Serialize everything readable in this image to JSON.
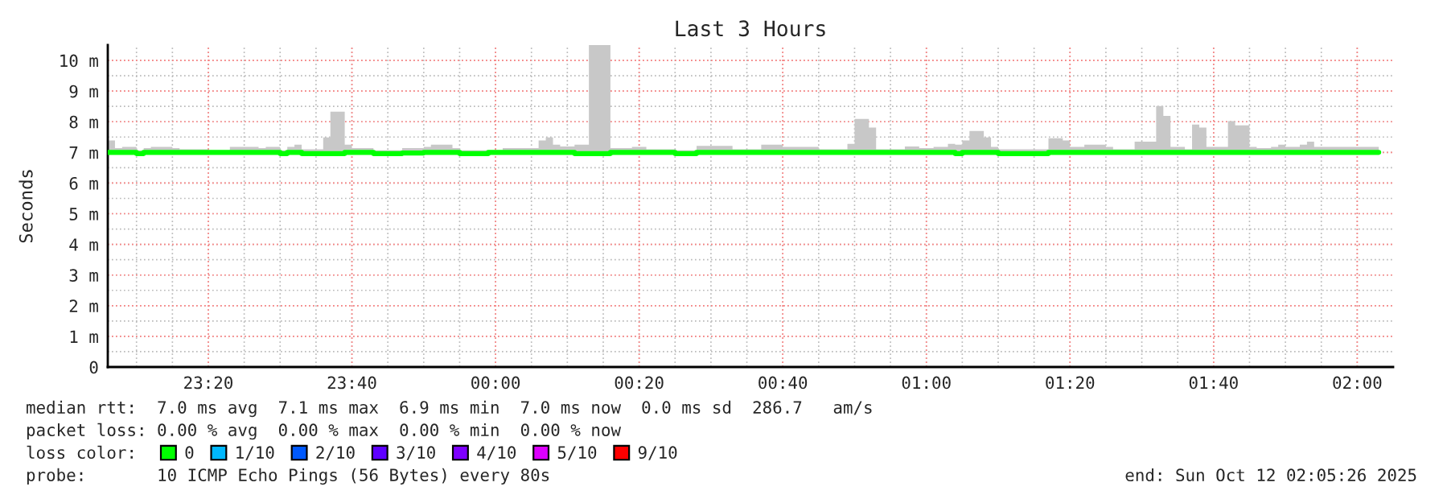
{
  "chart_data": {
    "type": "step",
    "title": "Last 3 Hours",
    "ylabel": "Seconds",
    "x": [
      "2025-10-11T23:06",
      "2025-10-11T23:07",
      "2025-10-11T23:08",
      "2025-10-11T23:10",
      "2025-10-11T23:11",
      "2025-10-11T23:12",
      "2025-10-11T23:15",
      "2025-10-11T23:16",
      "2025-10-11T23:20",
      "2025-10-11T23:23",
      "2025-10-11T23:27",
      "2025-10-11T23:28",
      "2025-10-11T23:30",
      "2025-10-11T23:31",
      "2025-10-11T23:32",
      "2025-10-11T23:33",
      "2025-10-11T23:36",
      "2025-10-11T23:37",
      "2025-10-11T23:39",
      "2025-10-11T23:40",
      "2025-10-11T23:43",
      "2025-10-11T23:47",
      "2025-10-11T23:50",
      "2025-10-11T23:51",
      "2025-10-11T23:54",
      "2025-10-11T23:55",
      "2025-10-11T23:59",
      "2025-10-12T00:01",
      "2025-10-12T00:06",
      "2025-10-12T00:07",
      "2025-10-12T00:08",
      "2025-10-12T00:09",
      "2025-10-12T00:11",
      "2025-10-12T00:13",
      "2025-10-12T00:16",
      "2025-10-12T00:19",
      "2025-10-12T00:21",
      "2025-10-12T00:25",
      "2025-10-12T00:28",
      "2025-10-12T00:33",
      "2025-10-12T00:37",
      "2025-10-12T00:40",
      "2025-10-12T00:45",
      "2025-10-12T00:49",
      "2025-10-12T00:50",
      "2025-10-12T00:52",
      "2025-10-12T00:53",
      "2025-10-12T00:56",
      "2025-10-12T00:57",
      "2025-10-12T00:59",
      "2025-10-12T01:01",
      "2025-10-12T01:03",
      "2025-10-12T01:04",
      "2025-10-12T01:05",
      "2025-10-12T01:06",
      "2025-10-12T01:08",
      "2025-10-12T01:09",
      "2025-10-12T01:10",
      "2025-10-12T01:17",
      "2025-10-12T01:19",
      "2025-10-12T01:20",
      "2025-10-12T01:22",
      "2025-10-12T01:25",
      "2025-10-12T01:26",
      "2025-10-12T01:29",
      "2025-10-12T01:32",
      "2025-10-12T01:33",
      "2025-10-12T01:34",
      "2025-10-12T01:36",
      "2025-10-12T01:37",
      "2025-10-12T01:38",
      "2025-10-12T01:39",
      "2025-10-12T01:42",
      "2025-10-12T01:43",
      "2025-10-12T01:45",
      "2025-10-12T01:46",
      "2025-10-12T01:48",
      "2025-10-12T01:49",
      "2025-10-12T01:50",
      "2025-10-12T01:52",
      "2025-10-12T01:53",
      "2025-10-12T01:54",
      "2025-10-12T02:03"
    ],
    "series": [
      {
        "name": "0",
        "color": "#00ff00",
        "values": [
          7.0,
          7.0,
          7.0,
          6.96,
          7.0,
          7.0,
          7.0,
          7.0,
          7.0,
          7.0,
          7.0,
          7.0,
          6.96,
          7.0,
          7.0,
          6.96,
          6.96,
          6.96,
          7.0,
          7.0,
          6.96,
          6.98,
          7.0,
          7.0,
          7.0,
          6.96,
          7.0,
          7.0,
          7.0,
          7.0,
          7.0,
          7.0,
          6.96,
          6.96,
          7.0,
          7.0,
          7.0,
          6.96,
          7.0,
          7.0,
          7.0,
          7.0,
          7.0,
          7.0,
          7.0,
          7.0,
          7.0,
          7.0,
          7.0,
          7.0,
          7.0,
          7.0,
          6.96,
          7.0,
          7.0,
          7.0,
          7.0,
          6.96,
          7.0,
          7.0,
          7.0,
          7.0,
          7.0,
          7.0,
          7.0,
          7.0,
          7.0,
          7.0,
          7.0,
          7.0,
          7.0,
          7.0,
          7.0,
          7.0,
          7.0,
          7.0,
          7.0,
          7.0,
          7.0,
          7.0,
          7.0,
          7.0,
          7.0
        ],
        "lower": [
          6.95,
          6.95,
          6.95,
          6.95,
          6.95,
          6.95,
          6.95,
          6.95,
          6.95,
          6.95,
          6.95,
          6.95,
          6.95,
          6.95,
          6.95,
          6.95,
          6.95,
          6.95,
          6.95,
          6.95,
          6.95,
          6.95,
          6.95,
          6.95,
          6.95,
          6.95,
          6.95,
          6.95,
          6.95,
          6.95,
          6.95,
          6.95,
          6.95,
          6.95,
          6.95,
          6.95,
          6.95,
          6.95,
          6.95,
          6.95,
          6.95,
          6.95,
          6.95,
          6.95,
          6.95,
          6.95,
          6.95,
          6.95,
          6.95,
          6.95,
          6.95,
          6.95,
          6.95,
          6.95,
          6.95,
          6.95,
          6.95,
          6.95,
          6.95,
          6.95,
          6.95,
          6.95,
          6.95,
          6.95,
          6.95,
          6.95,
          6.95,
          6.95,
          6.95,
          6.95,
          6.95,
          6.95,
          6.95,
          6.95,
          6.95,
          6.95,
          6.95,
          6.95,
          6.95,
          6.95,
          6.95,
          6.95,
          6.95
        ],
        "upper": [
          7.39,
          7.14,
          7.18,
          7.07,
          7.14,
          7.18,
          7.14,
          7.1,
          7.07,
          7.18,
          7.14,
          7.18,
          7.07,
          7.18,
          7.25,
          7.1,
          7.49,
          8.33,
          7.25,
          7.14,
          7.07,
          7.14,
          7.18,
          7.25,
          7.14,
          7.07,
          7.07,
          7.14,
          7.39,
          7.49,
          7.25,
          7.19,
          7.25,
          10.5,
          7.14,
          7.18,
          7.1,
          7.07,
          7.21,
          7.1,
          7.25,
          7.18,
          7.1,
          7.28,
          8.09,
          7.81,
          7.1,
          7.1,
          7.19,
          7.14,
          7.18,
          7.28,
          7.25,
          7.39,
          7.7,
          7.49,
          7.18,
          7.1,
          7.46,
          7.39,
          7.18,
          7.25,
          7.18,
          7.1,
          7.35,
          8.51,
          8.19,
          7.18,
          7.1,
          7.91,
          7.81,
          7.18,
          8.02,
          7.88,
          7.18,
          7.14,
          7.18,
          7.25,
          7.18,
          7.25,
          7.35,
          7.18,
          7.18
        ]
      },
      {
        "name": "1/10",
        "color": "#00b8ff",
        "values": [
          null,
          null,
          null,
          null,
          null,
          null,
          null,
          null,
          null,
          null,
          null,
          null,
          null,
          null,
          null,
          null,
          null,
          null,
          null,
          null,
          null,
          null,
          null,
          null,
          null,
          null,
          null,
          null,
          null,
          null,
          null,
          null,
          null,
          null,
          null,
          null,
          null,
          null,
          null,
          null,
          null,
          null,
          null,
          null,
          null,
          null,
          null,
          null,
          null,
          null,
          null,
          null,
          null,
          null,
          null,
          null,
          null,
          null,
          null,
          null,
          null,
          null,
          null,
          null,
          null,
          null,
          null,
          null,
          null,
          null,
          null,
          null,
          null,
          null,
          null,
          null,
          null,
          null,
          null,
          null,
          null,
          null,
          null
        ]
      },
      {
        "name": "2/10",
        "color": "#0059ff",
        "values": [
          null,
          null,
          null,
          null,
          null,
          null,
          null,
          null,
          null,
          null,
          null,
          null,
          null,
          null,
          null,
          null,
          null,
          null,
          null,
          null,
          null,
          null,
          null,
          null,
          null,
          null,
          null,
          null,
          null,
          null,
          null,
          null,
          null,
          null,
          null,
          null,
          null,
          null,
          null,
          null,
          null,
          null,
          null,
          null,
          null,
          null,
          null,
          null,
          null,
          null,
          null,
          null,
          null,
          null,
          null,
          null,
          null,
          null,
          null,
          null,
          null,
          null,
          null,
          null,
          null,
          null,
          null,
          null,
          null,
          null,
          null,
          null,
          null,
          null,
          null,
          null,
          null,
          null,
          null,
          null,
          null,
          null,
          null
        ]
      },
      {
        "name": "3/10",
        "color": "#5e00ff",
        "values": [
          null,
          null,
          null,
          null,
          null,
          null,
          null,
          null,
          null,
          null,
          null,
          null,
          null,
          null,
          null,
          null,
          null,
          null,
          null,
          null,
          null,
          null,
          null,
          null,
          null,
          null,
          null,
          null,
          null,
          null,
          null,
          null,
          null,
          null,
          null,
          null,
          null,
          null,
          null,
          null,
          null,
          null,
          null,
          null,
          null,
          null,
          null,
          null,
          null,
          null,
          null,
          null,
          null,
          null,
          null,
          null,
          null,
          null,
          null,
          null,
          null,
          null,
          null,
          null,
          null,
          null,
          null,
          null,
          null,
          null,
          null,
          null,
          null,
          null,
          null,
          null,
          null,
          null,
          null,
          null,
          null,
          null,
          null
        ]
      },
      {
        "name": "4/10",
        "color": "#7e00ff",
        "values": [
          null,
          null,
          null,
          null,
          null,
          null,
          null,
          null,
          null,
          null,
          null,
          null,
          null,
          null,
          null,
          null,
          null,
          null,
          null,
          null,
          null,
          null,
          null,
          null,
          null,
          null,
          null,
          null,
          null,
          null,
          null,
          null,
          null,
          null,
          null,
          null,
          null,
          null,
          null,
          null,
          null,
          null,
          null,
          null,
          null,
          null,
          null,
          null,
          null,
          null,
          null,
          null,
          null,
          null,
          null,
          null,
          null,
          null,
          null,
          null,
          null,
          null,
          null,
          null,
          null,
          null,
          null,
          null,
          null,
          null,
          null,
          null,
          null,
          null,
          null,
          null,
          null,
          null,
          null,
          null,
          null,
          null,
          null
        ]
      },
      {
        "name": "5/10",
        "color": "#dd00ff",
        "values": [
          null,
          null,
          null,
          null,
          null,
          null,
          null,
          null,
          null,
          null,
          null,
          null,
          null,
          null,
          null,
          null,
          null,
          null,
          null,
          null,
          null,
          null,
          null,
          null,
          null,
          null,
          null,
          null,
          null,
          null,
          null,
          null,
          null,
          null,
          null,
          null,
          null,
          null,
          null,
          null,
          null,
          null,
          null,
          null,
          null,
          null,
          null,
          null,
          null,
          null,
          null,
          null,
          null,
          null,
          null,
          null,
          null,
          null,
          null,
          null,
          null,
          null,
          null,
          null,
          null,
          null,
          null,
          null,
          null,
          null,
          null,
          null,
          null,
          null,
          null,
          null,
          null,
          null,
          null,
          null,
          null,
          null,
          null
        ]
      },
      {
        "name": "9/10",
        "color": "#ff0000",
        "values": [
          null,
          null,
          null,
          null,
          null,
          null,
          null,
          null,
          null,
          null,
          null,
          null,
          null,
          null,
          null,
          null,
          null,
          null,
          null,
          null,
          null,
          null,
          null,
          null,
          null,
          null,
          null,
          null,
          null,
          null,
          null,
          null,
          null,
          null,
          null,
          null,
          null,
          null,
          null,
          null,
          null,
          null,
          null,
          null,
          null,
          null,
          null,
          null,
          null,
          null,
          null,
          null,
          null,
          null,
          null,
          null,
          null,
          null,
          null,
          null,
          null,
          null,
          null,
          null,
          null,
          null,
          null,
          null,
          null,
          null,
          null,
          null,
          null,
          null,
          null,
          null,
          null,
          null,
          null,
          null,
          null,
          null,
          null
        ]
      }
    ],
    "xlim": [
      "2025-10-11T23:06",
      "2025-10-12T02:05"
    ],
    "xticks": [
      {
        "value": "2025-10-11T23:20",
        "label": "23:20"
      },
      {
        "value": "2025-10-11T23:40",
        "label": "23:40"
      },
      {
        "value": "2025-10-12T00:00",
        "label": "00:00"
      },
      {
        "value": "2025-10-12T00:20",
        "label": "00:20"
      },
      {
        "value": "2025-10-12T00:40",
        "label": "00:40"
      },
      {
        "value": "2025-10-12T01:00",
        "label": "01:00"
      },
      {
        "value": "2025-10-12T01:20",
        "label": "01:20"
      },
      {
        "value": "2025-10-12T01:40",
        "label": "01:40"
      },
      {
        "value": "2025-10-12T02:00",
        "label": "02:00"
      }
    ],
    "ylim": [
      0,
      10.5
    ],
    "yticks": [
      0,
      {
        "value": 1,
        "label": "1 m"
      },
      {
        "value": 2,
        "label": "2 m"
      },
      {
        "value": 3,
        "label": "3 m"
      },
      {
        "value": 4,
        "label": "4 m"
      },
      {
        "value": 5,
        "label": "5 m"
      },
      {
        "value": 6,
        "label": "6 m"
      },
      {
        "value": 7,
        "label": "7 m"
      },
      {
        "value": 8,
        "label": "8 m"
      },
      {
        "value": 9,
        "label": "9 m"
      },
      {
        "value": 10,
        "label": "10 m"
      }
    ],
    "grid": true,
    "legend": "bottom left",
    "annotations": [
      "median rtt:  7.0 ms avg  7.1 ms max  6.9 ms min  7.0 ms now  0.0 ms sd  286.7   am/s",
      "packet loss: 0.00 % avg  0.00 % max  0.00 % min  0.00 % now",
      "loss color:",
      "probe:       10 ICMP Echo Pings (56 Bytes) every 80s",
      "end: Sun Oct 12 02:05:26 2025"
    ]
  }
}
